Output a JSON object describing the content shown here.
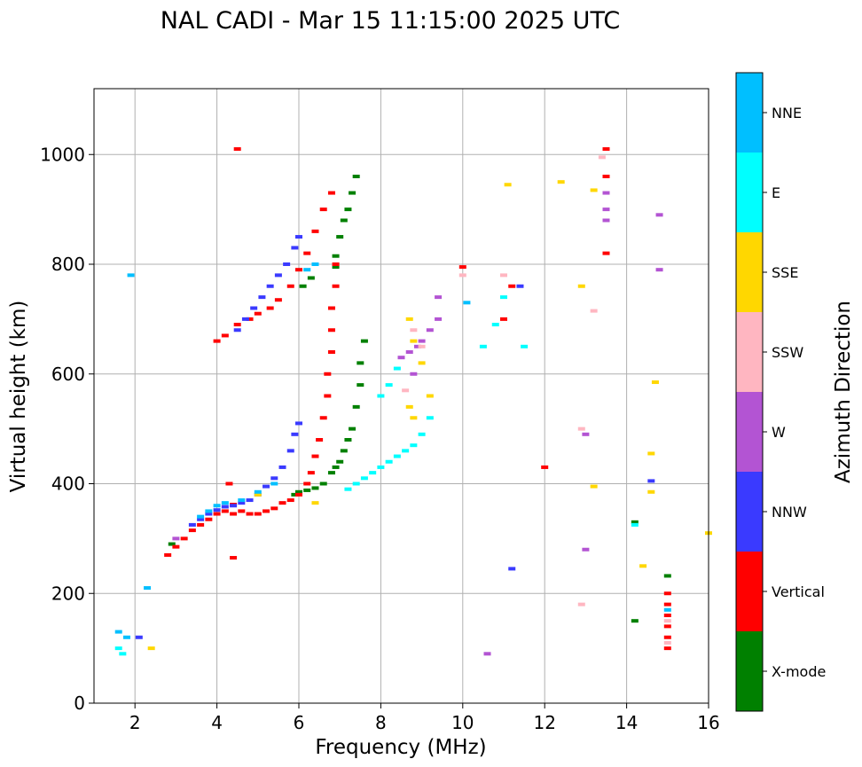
{
  "chart_data": {
    "type": "scatter",
    "title": "NAL CADI - Mar 15 11:15:00 2025 UTC",
    "xlabel": "Frequency (MHz)",
    "ylabel": "Virtual height (km)",
    "xlim": [
      1,
      16
    ],
    "ylim": [
      0,
      1120
    ],
    "xticks": [
      2,
      4,
      6,
      8,
      10,
      12,
      14,
      16
    ],
    "yticks": [
      0,
      200,
      400,
      600,
      800,
      1000
    ],
    "grid": true,
    "colorbar": {
      "label": "Azimuth Direction",
      "categories": [
        {
          "name": "X-mode",
          "color": "#008000"
        },
        {
          "name": "Vertical",
          "color": "#ff0000"
        },
        {
          "name": "NNW",
          "color": "#3a3aff"
        },
        {
          "name": "W",
          "color": "#b354d3"
        },
        {
          "name": "SSW",
          "color": "#ffb6c1"
        },
        {
          "name": "SSE",
          "color": "#ffd700"
        },
        {
          "name": "E",
          "color": "#00ffff"
        },
        {
          "name": "NNE",
          "color": "#00bfff"
        }
      ]
    },
    "series": [
      {
        "name": "X-mode",
        "points": [
          [
            5.9,
            380
          ],
          [
            6.0,
            385
          ],
          [
            6.2,
            388
          ],
          [
            6.4,
            392
          ],
          [
            6.6,
            400
          ],
          [
            6.8,
            420
          ],
          [
            6.9,
            430
          ],
          [
            7.0,
            440
          ],
          [
            7.1,
            460
          ],
          [
            7.2,
            480
          ],
          [
            7.3,
            500
          ],
          [
            7.4,
            540
          ],
          [
            7.5,
            580
          ],
          [
            7.5,
            620
          ],
          [
            7.6,
            660
          ],
          [
            6.9,
            795
          ],
          [
            6.9,
            815
          ],
          [
            7.0,
            850
          ],
          [
            7.1,
            880
          ],
          [
            7.2,
            900
          ],
          [
            7.3,
            930
          ],
          [
            7.4,
            960
          ],
          [
            14.2,
            330
          ],
          [
            14.2,
            150
          ],
          [
            15.0,
            232
          ],
          [
            6.1,
            760
          ],
          [
            6.3,
            775
          ],
          [
            2.9,
            290
          ]
        ]
      },
      {
        "name": "Vertical",
        "points": [
          [
            2.8,
            270
          ],
          [
            3.0,
            285
          ],
          [
            3.2,
            300
          ],
          [
            3.4,
            315
          ],
          [
            3.6,
            325
          ],
          [
            3.8,
            335
          ],
          [
            4.0,
            345
          ],
          [
            4.2,
            350
          ],
          [
            4.4,
            345
          ],
          [
            4.6,
            350
          ],
          [
            4.8,
            345
          ],
          [
            5.0,
            345
          ],
          [
            5.2,
            350
          ],
          [
            5.4,
            355
          ],
          [
            5.6,
            365
          ],
          [
            5.8,
            370
          ],
          [
            6.0,
            380
          ],
          [
            6.2,
            400
          ],
          [
            6.3,
            420
          ],
          [
            6.4,
            450
          ],
          [
            6.5,
            480
          ],
          [
            6.6,
            520
          ],
          [
            6.7,
            560
          ],
          [
            6.7,
            600
          ],
          [
            6.8,
            640
          ],
          [
            6.8,
            680
          ],
          [
            6.8,
            720
          ],
          [
            6.9,
            760
          ],
          [
            6.9,
            800
          ],
          [
            4.0,
            660
          ],
          [
            4.2,
            670
          ],
          [
            4.5,
            690
          ],
          [
            4.8,
            700
          ],
          [
            5.0,
            710
          ],
          [
            5.3,
            720
          ],
          [
            5.5,
            735
          ],
          [
            5.8,
            760
          ],
          [
            6.0,
            790
          ],
          [
            6.2,
            820
          ],
          [
            6.4,
            860
          ],
          [
            6.6,
            900
          ],
          [
            6.8,
            930
          ],
          [
            15.0,
            200
          ],
          [
            15.0,
            180
          ],
          [
            15.0,
            160
          ],
          [
            15.0,
            140
          ],
          [
            15.0,
            120
          ],
          [
            15.0,
            100
          ],
          [
            13.5,
            1010
          ],
          [
            13.5,
            960
          ],
          [
            13.5,
            820
          ],
          [
            4.5,
            1010
          ],
          [
            12.0,
            430
          ],
          [
            11.2,
            760
          ],
          [
            11.0,
            700
          ],
          [
            4.3,
            400
          ],
          [
            4.4,
            362
          ],
          [
            10.0,
            795
          ],
          [
            4.4,
            265
          ]
        ]
      },
      {
        "name": "NNW",
        "points": [
          [
            3.4,
            325
          ],
          [
            3.6,
            335
          ],
          [
            3.8,
            345
          ],
          [
            4.0,
            352
          ],
          [
            4.2,
            358
          ],
          [
            4.4,
            360
          ],
          [
            4.6,
            365
          ],
          [
            4.8,
            370
          ],
          [
            5.0,
            380
          ],
          [
            5.2,
            395
          ],
          [
            5.4,
            410
          ],
          [
            5.6,
            430
          ],
          [
            5.8,
            460
          ],
          [
            5.9,
            490
          ],
          [
            6.0,
            510
          ],
          [
            4.5,
            680
          ],
          [
            4.7,
            700
          ],
          [
            4.9,
            720
          ],
          [
            5.1,
            740
          ],
          [
            5.3,
            760
          ],
          [
            5.5,
            780
          ],
          [
            5.7,
            800
          ],
          [
            5.9,
            830
          ],
          [
            6.0,
            850
          ],
          [
            14.6,
            405
          ],
          [
            2.1,
            120
          ],
          [
            11.4,
            760
          ],
          [
            11.2,
            245
          ]
        ]
      },
      {
        "name": "W",
        "points": [
          [
            8.5,
            630
          ],
          [
            8.7,
            640
          ],
          [
            8.9,
            650
          ],
          [
            9.0,
            660
          ],
          [
            9.2,
            680
          ],
          [
            9.4,
            700
          ],
          [
            9.4,
            740
          ],
          [
            13.5,
            930
          ],
          [
            13.5,
            900
          ],
          [
            13.5,
            880
          ],
          [
            14.8,
            890
          ],
          [
            14.8,
            790
          ],
          [
            13.0,
            490
          ],
          [
            13.0,
            280
          ],
          [
            10.6,
            90
          ],
          [
            3.0,
            300
          ],
          [
            8.8,
            600
          ]
        ]
      },
      {
        "name": "SSW",
        "points": [
          [
            8.8,
            680
          ],
          [
            9.0,
            650
          ],
          [
            8.6,
            570
          ],
          [
            12.9,
            500
          ],
          [
            12.9,
            180
          ],
          [
            13.4,
            995
          ],
          [
            13.2,
            715
          ],
          [
            11.0,
            780
          ],
          [
            10.0,
            780
          ],
          [
            15.0,
            150
          ],
          [
            15.0,
            110
          ]
        ]
      },
      {
        "name": "SSE",
        "points": [
          [
            8.7,
            700
          ],
          [
            8.8,
            660
          ],
          [
            9.0,
            620
          ],
          [
            8.7,
            540
          ],
          [
            8.8,
            520
          ],
          [
            9.2,
            560
          ],
          [
            14.7,
            585
          ],
          [
            14.6,
            455
          ],
          [
            14.6,
            385
          ],
          [
            14.4,
            250
          ],
          [
            12.4,
            950
          ],
          [
            13.2,
            935
          ],
          [
            12.9,
            760
          ],
          [
            13.2,
            395
          ],
          [
            16.0,
            310
          ],
          [
            5.0,
            380
          ],
          [
            6.4,
            365
          ],
          [
            2.4,
            100
          ],
          [
            11.1,
            945
          ]
        ]
      },
      {
        "name": "E",
        "points": [
          [
            7.2,
            390
          ],
          [
            7.4,
            400
          ],
          [
            7.6,
            410
          ],
          [
            7.8,
            420
          ],
          [
            8.0,
            430
          ],
          [
            8.2,
            440
          ],
          [
            8.4,
            450
          ],
          [
            8.6,
            460
          ],
          [
            8.8,
            470
          ],
          [
            9.0,
            490
          ],
          [
            9.2,
            520
          ],
          [
            8.0,
            560
          ],
          [
            8.2,
            580
          ],
          [
            8.4,
            610
          ],
          [
            10.5,
            650
          ],
          [
            10.8,
            690
          ],
          [
            11.0,
            740
          ],
          [
            11.5,
            650
          ],
          [
            14.2,
            325
          ],
          [
            1.6,
            100
          ],
          [
            1.7,
            90
          ]
        ]
      },
      {
        "name": "NNE",
        "points": [
          [
            3.6,
            340
          ],
          [
            3.8,
            350
          ],
          [
            4.0,
            360
          ],
          [
            4.2,
            365
          ],
          [
            4.6,
            370
          ],
          [
            5.0,
            385
          ],
          [
            5.4,
            400
          ],
          [
            6.2,
            790
          ],
          [
            6.4,
            800
          ],
          [
            1.9,
            780
          ],
          [
            2.3,
            210
          ],
          [
            15.0,
            170
          ],
          [
            10.1,
            730
          ],
          [
            1.6,
            130
          ],
          [
            1.8,
            120
          ]
        ]
      }
    ]
  }
}
